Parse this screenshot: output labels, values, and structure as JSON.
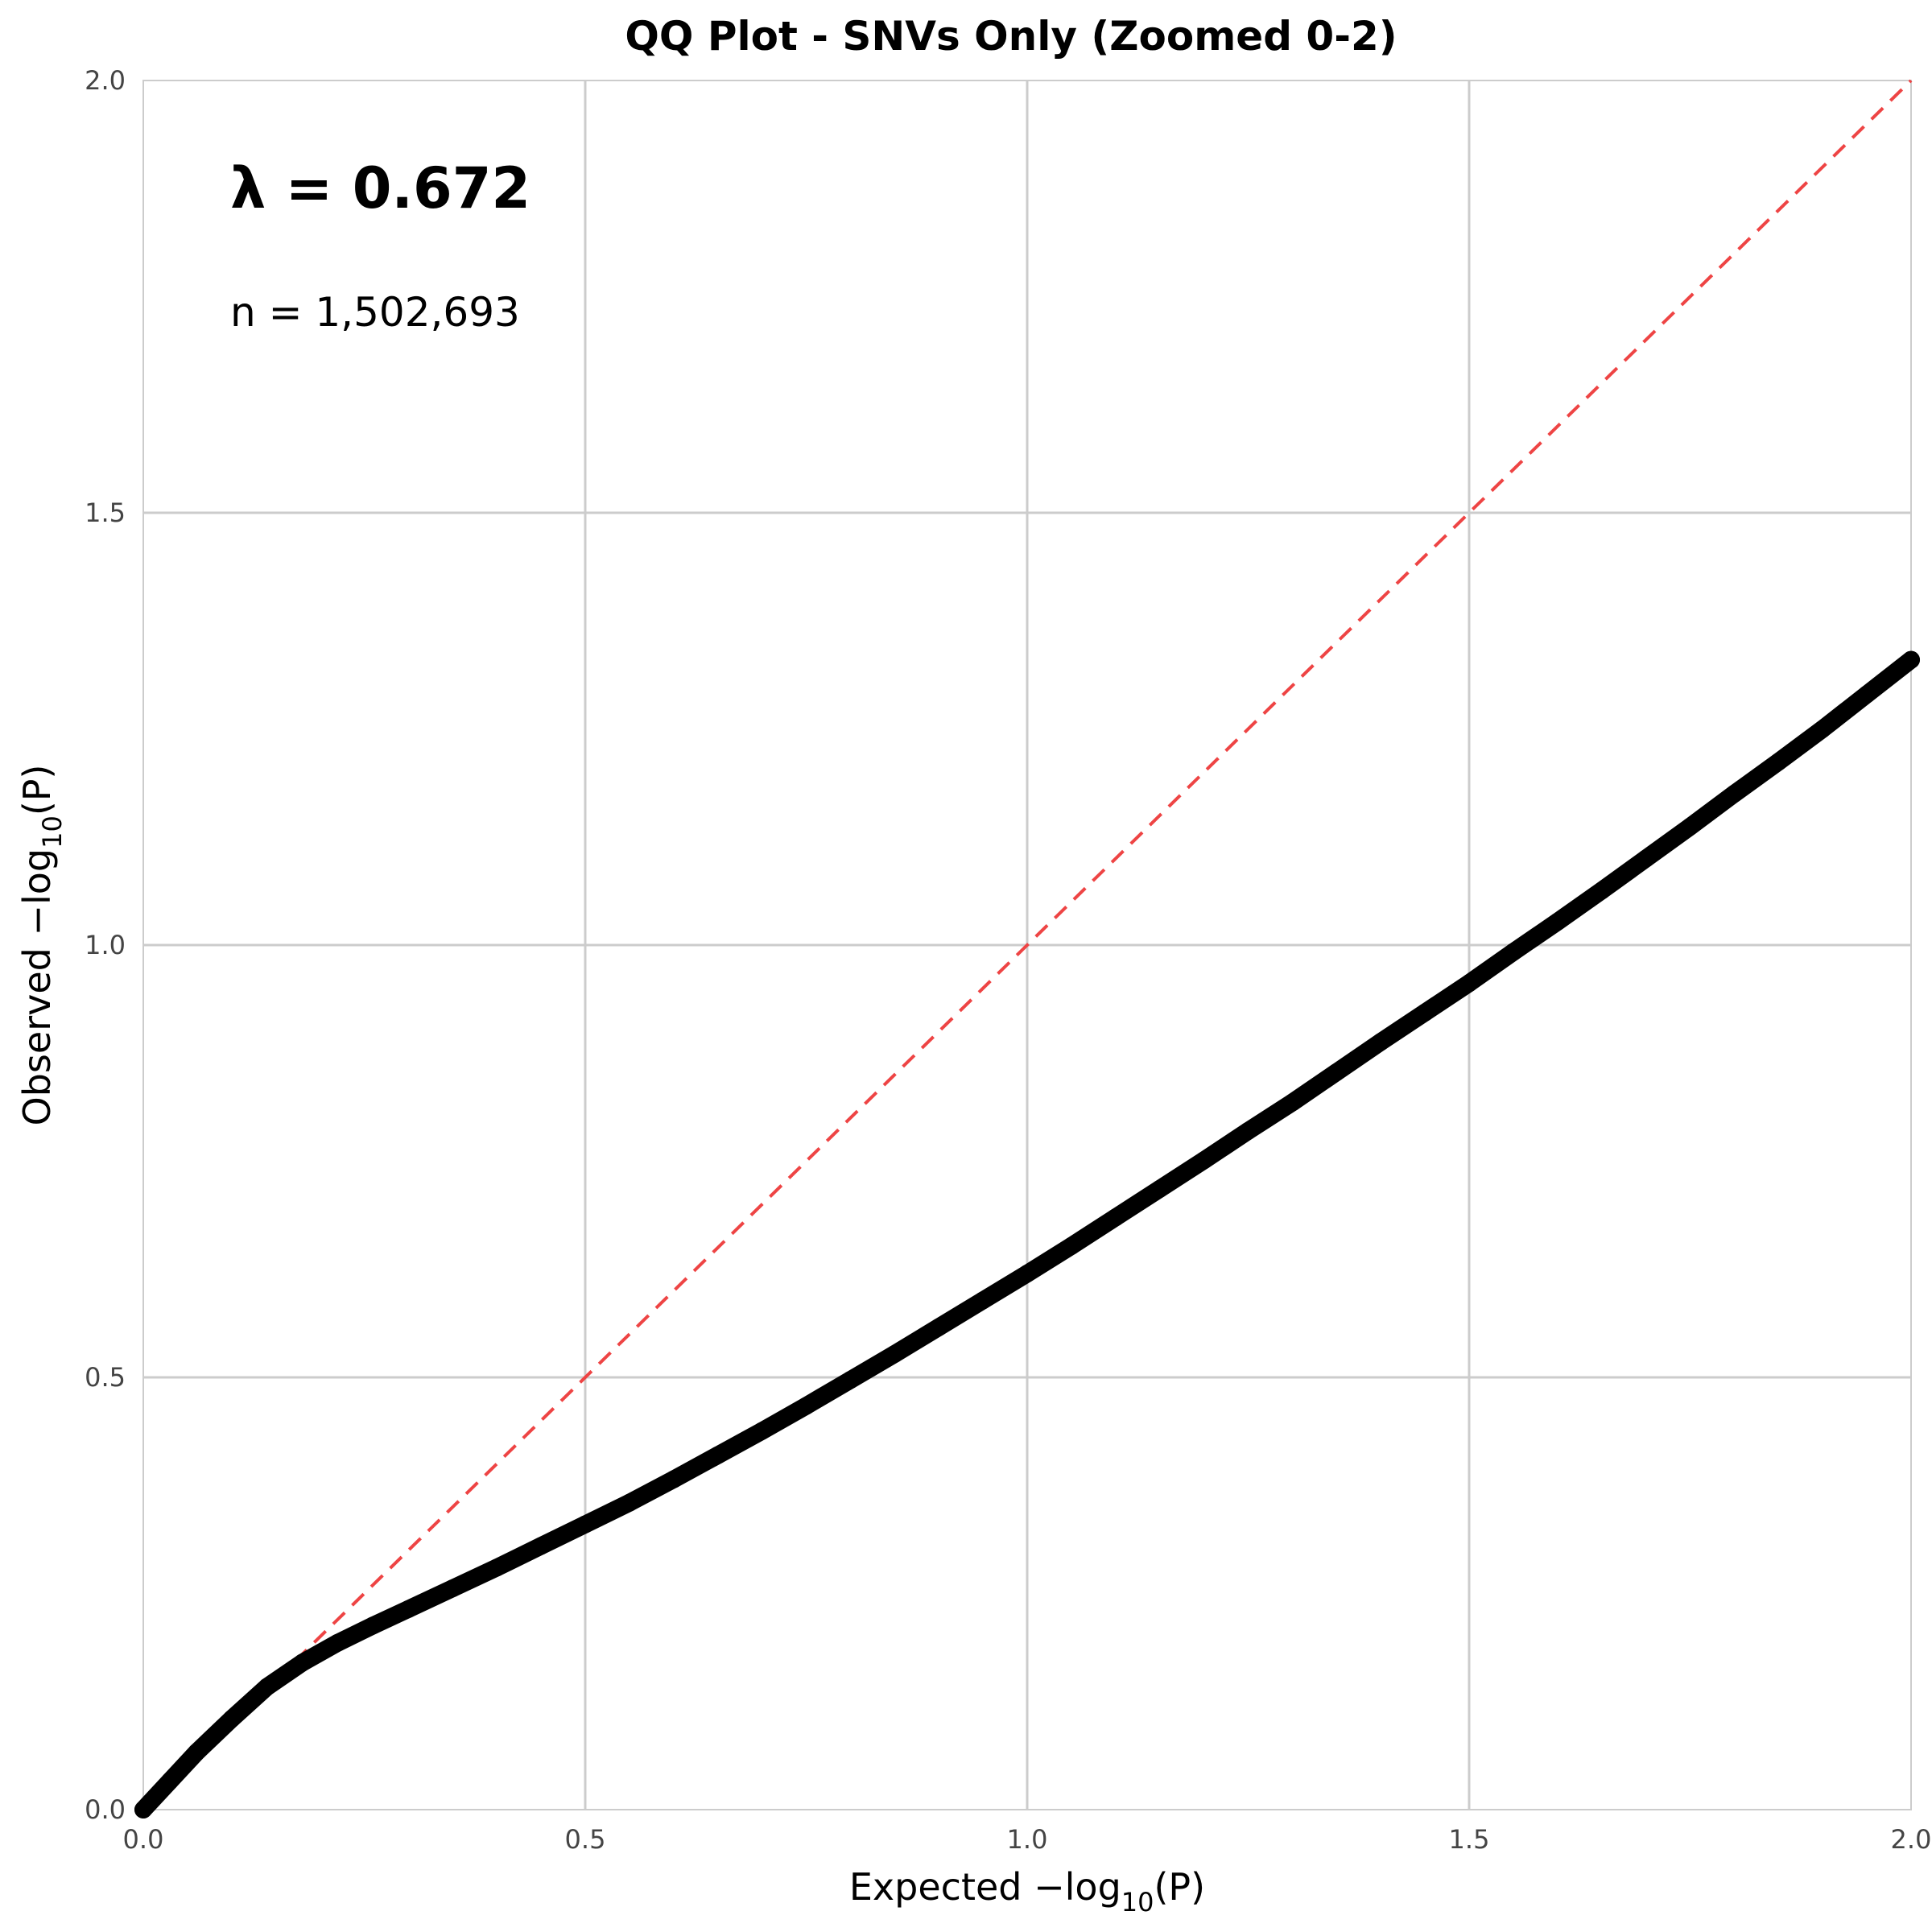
{
  "chart_data": {
    "type": "scatter",
    "title": "QQ Plot - SNVs Only (Zoomed 0-2)",
    "xlabel": {
      "prefix": "Expected −log",
      "sub": "10",
      "suffix": "(P)"
    },
    "ylabel": {
      "prefix": "Observed −log",
      "sub": "10",
      "suffix": "(P)"
    },
    "xlim": [
      0,
      2
    ],
    "ylim": [
      0,
      2
    ],
    "xticks": [
      "0.0",
      "0.5",
      "1.0",
      "1.5",
      "2.0"
    ],
    "yticks": [
      "0.0",
      "0.5",
      "1.0",
      "1.5",
      "2.0"
    ],
    "grid": true,
    "annotations": {
      "lambda": "λ = 0.672",
      "n": "n = 1,502,693"
    },
    "reference_line": {
      "style": "dashed",
      "color": "#ee4444",
      "from": [
        0,
        0
      ],
      "to": [
        2,
        2
      ]
    },
    "series": [
      {
        "color": "#000000",
        "points": [
          [
            0.0,
            0.0
          ],
          [
            0.03,
            0.033
          ],
          [
            0.06,
            0.066
          ],
          [
            0.1,
            0.105
          ],
          [
            0.14,
            0.142
          ],
          [
            0.18,
            0.17
          ],
          [
            0.22,
            0.193
          ],
          [
            0.26,
            0.213
          ],
          [
            0.3,
            0.232
          ],
          [
            0.35,
            0.256
          ],
          [
            0.4,
            0.28
          ],
          [
            0.45,
            0.305
          ],
          [
            0.5,
            0.33
          ],
          [
            0.55,
            0.355
          ],
          [
            0.6,
            0.382
          ],
          [
            0.65,
            0.41
          ],
          [
            0.7,
            0.438
          ],
          [
            0.75,
            0.467
          ],
          [
            0.8,
            0.497
          ],
          [
            0.85,
            0.527
          ],
          [
            0.9,
            0.558
          ],
          [
            0.95,
            0.589
          ],
          [
            1.0,
            0.62
          ],
          [
            1.05,
            0.652
          ],
          [
            1.1,
            0.685
          ],
          [
            1.15,
            0.718
          ],
          [
            1.2,
            0.751
          ],
          [
            1.25,
            0.785
          ],
          [
            1.3,
            0.818
          ],
          [
            1.35,
            0.853
          ],
          [
            1.4,
            0.888
          ],
          [
            1.45,
            0.922
          ],
          [
            1.5,
            0.956
          ],
          [
            1.55,
            0.992
          ],
          [
            1.6,
            1.027
          ],
          [
            1.65,
            1.063
          ],
          [
            1.7,
            1.1
          ],
          [
            1.75,
            1.137
          ],
          [
            1.8,
            1.175
          ],
          [
            1.85,
            1.212
          ],
          [
            1.9,
            1.25
          ],
          [
            1.95,
            1.29
          ],
          [
            2.0,
            1.33
          ]
        ]
      }
    ]
  }
}
